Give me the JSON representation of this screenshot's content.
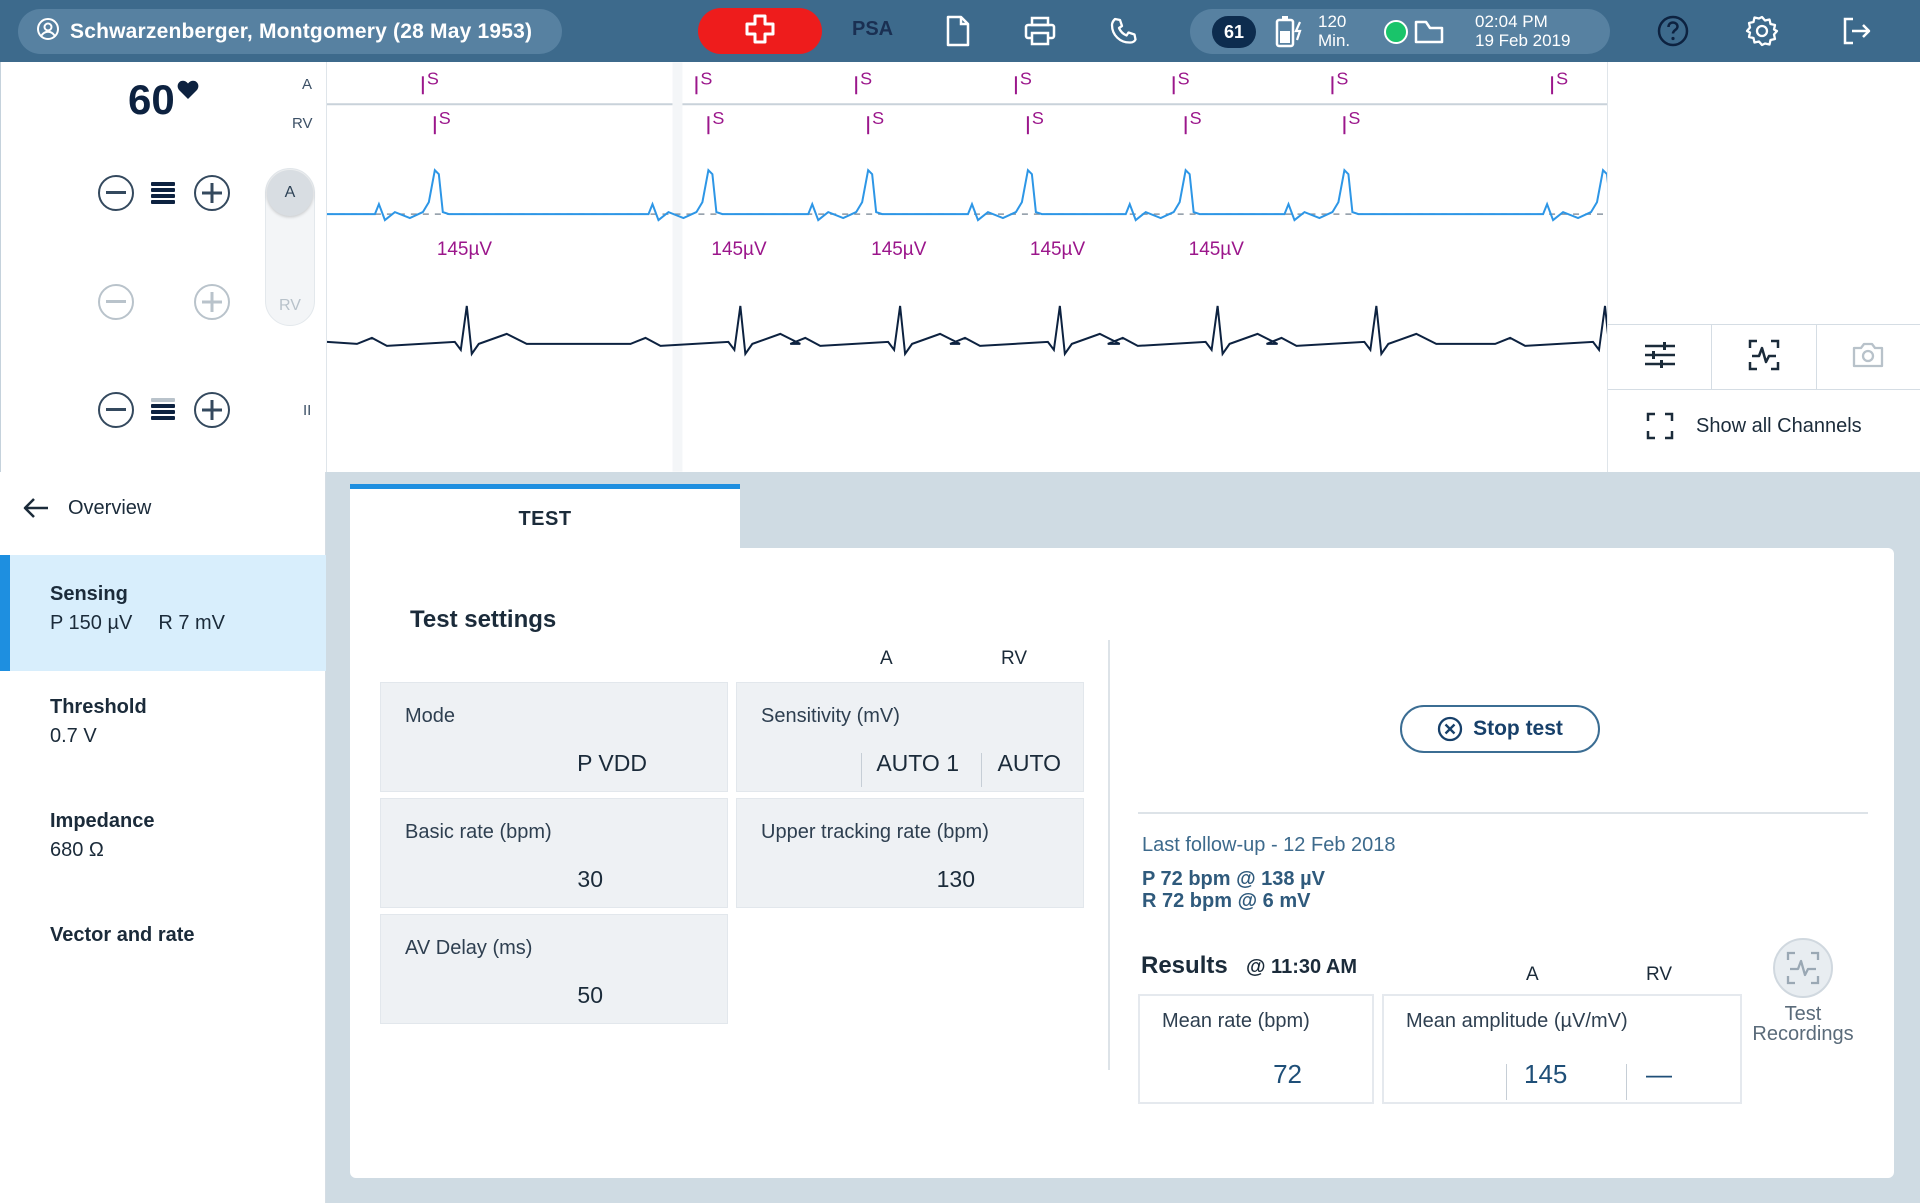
{
  "topbar": {
    "patient_name": "Schwarzenberger, Montgomery (28 May 1953)",
    "mode_label": "PSA",
    "count_badge": "61",
    "battery_value": "120",
    "battery_unit": "Min.",
    "time": "02:04 PM",
    "date": "19 Feb 2019",
    "colors": {
      "bar": "#3d6a8c",
      "emergency": "#ee1c1c",
      "status_ok": "#19c46a"
    },
    "icons": [
      "user-icon",
      "emergency-icon",
      "document-icon",
      "print-icon",
      "phone-icon",
      "battery-icon",
      "status-icon",
      "help-icon",
      "settings-icon",
      "logout-icon"
    ]
  },
  "ecg": {
    "heart_rate": "60",
    "channel_labels": {
      "a": "A",
      "rv": "RV",
      "ii": "II"
    },
    "toggle_labels": {
      "a": "A",
      "rv": "RV"
    },
    "marker_label": "S",
    "amplitude_labels": [
      "145µV",
      "145µV",
      "145µV",
      "145µV",
      "145µV"
    ],
    "show_all_label": "Show all Channels",
    "colors": {
      "marker": "#9b168b",
      "a_wave": "#2d96e6",
      "ii_wave": "#0d2240"
    }
  },
  "sidebar": {
    "overview_label": "Overview",
    "items": [
      {
        "title": "Sensing",
        "value_p": "P 150 µV",
        "value_r": "R 7 mV",
        "selected": true
      },
      {
        "title": "Threshold",
        "value": "0.7 V"
      },
      {
        "title": "Impedance",
        "value": "680 Ω"
      },
      {
        "title": "Vector and rate"
      }
    ]
  },
  "tab": {
    "label": "TEST"
  },
  "test_settings": {
    "title": "Test settings",
    "col_a": "A",
    "col_rv": "RV",
    "mode": {
      "label": "Mode",
      "value": "P VDD"
    },
    "sensitivity": {
      "label": "Sensitivity (mV)",
      "value_a": "AUTO 1",
      "value_rv": "AUTO"
    },
    "basic_rate": {
      "label": "Basic rate (bpm)",
      "value": "30"
    },
    "upper_tracking": {
      "label": "Upper tracking rate (bpm)",
      "value": "130"
    },
    "av_delay": {
      "label": "AV Delay (ms)",
      "value": "50"
    }
  },
  "actions": {
    "stop_test": "Stop test"
  },
  "follow_up": {
    "title": "Last follow-up - 12 Feb 2018",
    "p_line": "P 72 bpm @ 138 µV",
    "r_line": "R 72 bpm @ 6 mV"
  },
  "results": {
    "title": "Results",
    "time": "@ 11:30 AM",
    "col_a": "A",
    "col_rv": "RV",
    "mean_rate": {
      "label": "Mean rate (bpm)",
      "value": "72"
    },
    "mean_amplitude": {
      "label": "Mean amplitude (µV/mV)",
      "value_a": "145",
      "value_rv": "—"
    },
    "recordings_label_1": "Test",
    "recordings_label_2": "Recordings"
  }
}
